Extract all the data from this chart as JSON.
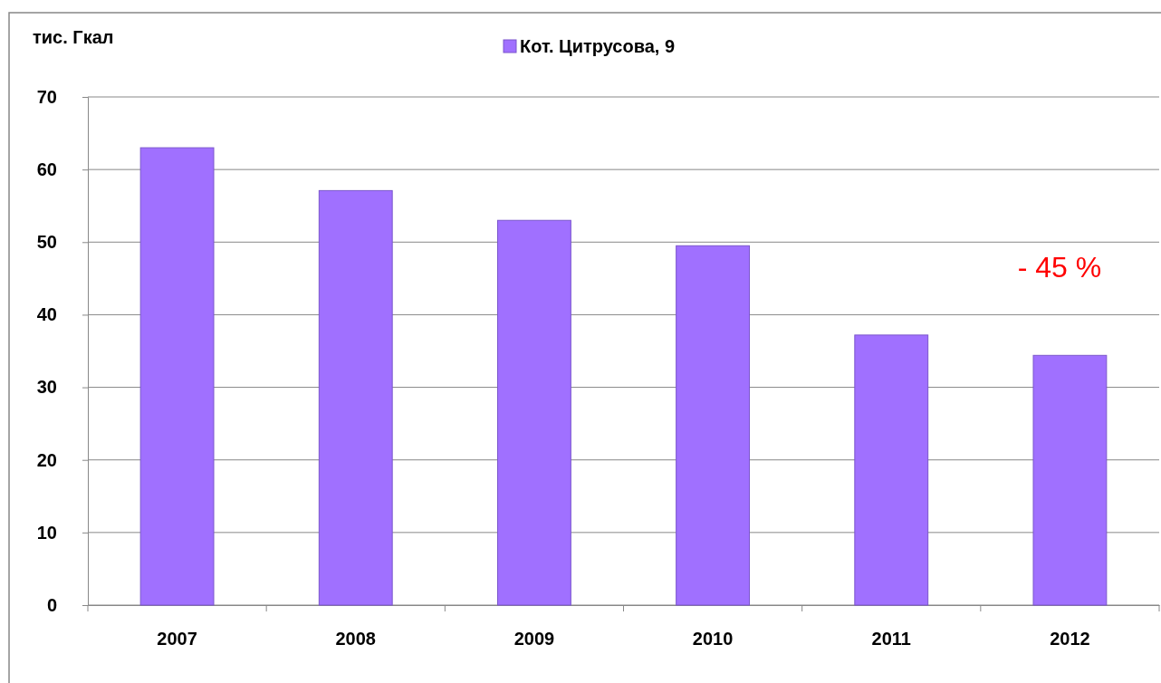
{
  "chart_data": {
    "type": "bar",
    "ylabel": "тис. Гкал",
    "categories": [
      "2007",
      "2008",
      "2009",
      "2010",
      "2011",
      "2012"
    ],
    "series": [
      {
        "name": "Кот. Цитрусова, 9",
        "color": "#a070ff",
        "values": [
          63.0,
          57.1,
          53.0,
          49.5,
          37.2,
          34.4
        ]
      }
    ],
    "ylim": [
      0,
      70
    ],
    "yticks": [
      0,
      10,
      20,
      30,
      40,
      50,
      60,
      70
    ],
    "grid": "y",
    "legend": "top",
    "annotations": [
      "- 45 %"
    ]
  }
}
